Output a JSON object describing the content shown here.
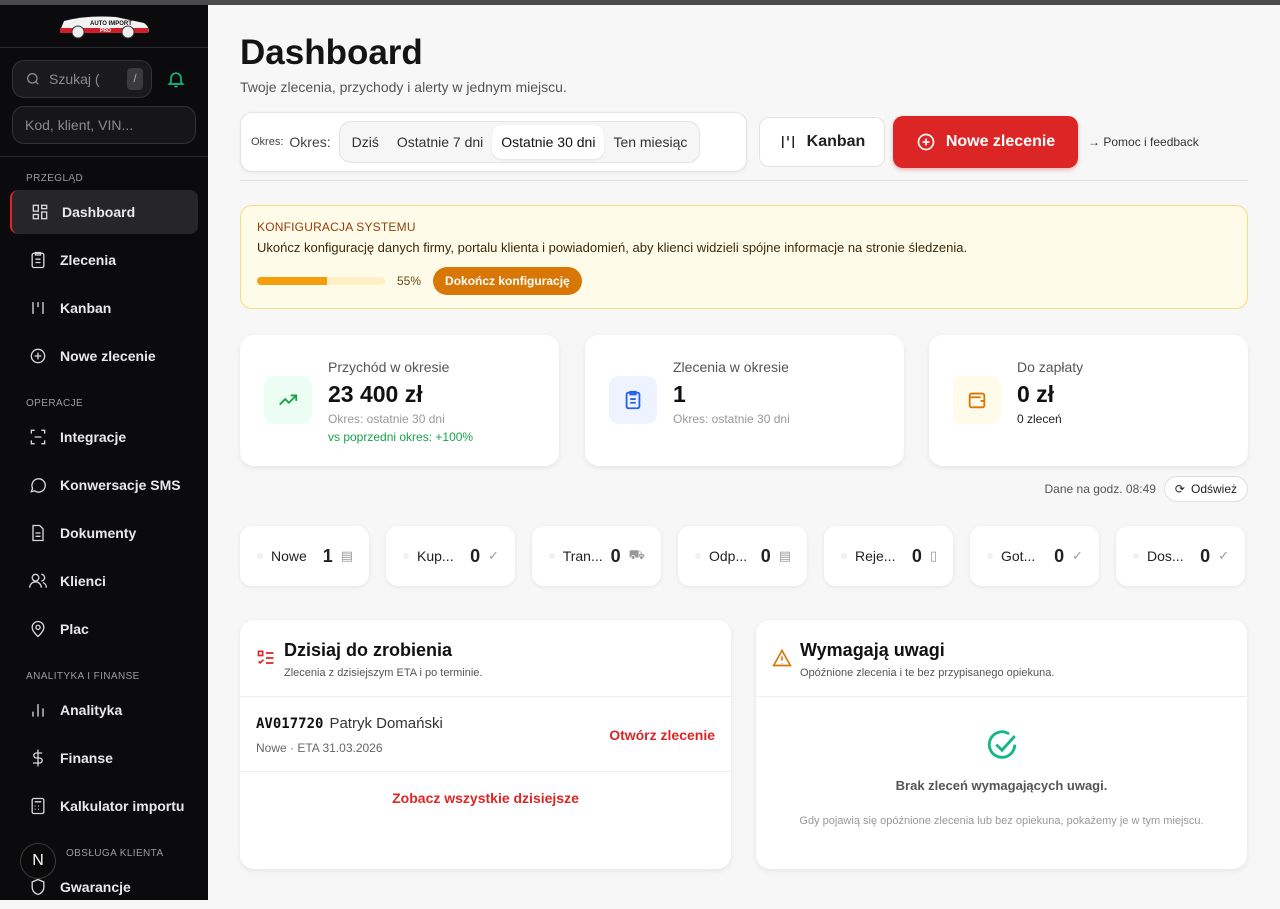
{
  "brand": {
    "logo_text": "AUTO IMPORT PRO"
  },
  "sidebar": {
    "search_placeholder": "Szukaj (",
    "search_shortcut": "/",
    "quick_placeholder": "Kod, klient, VIN...",
    "sections": [
      {
        "label": "PRZEGLĄD",
        "items": [
          {
            "label": "Dashboard",
            "icon": "grid-icon",
            "active": true
          },
          {
            "label": "Zlecenia",
            "icon": "clipboard-icon"
          },
          {
            "label": "Kanban",
            "icon": "kanban-icon"
          },
          {
            "label": "Nowe zlecenie",
            "icon": "plus-circle-icon"
          }
        ]
      },
      {
        "label": "OPERACJE",
        "items": [
          {
            "label": "Integracje",
            "icon": "scan-icon"
          },
          {
            "label": "Konwersacje SMS",
            "icon": "chat-icon"
          },
          {
            "label": "Dokumenty",
            "icon": "document-icon"
          },
          {
            "label": "Klienci",
            "icon": "users-icon"
          },
          {
            "label": "Plac",
            "icon": "map-pin-icon"
          }
        ]
      },
      {
        "label": "ANALITYKA I FINANSE",
        "items": [
          {
            "label": "Analityka",
            "icon": "bar-chart-icon"
          },
          {
            "label": "Finanse",
            "icon": "dollar-icon"
          },
          {
            "label": "Kalkulator importu",
            "icon": "calculator-icon"
          }
        ]
      },
      {
        "label": "OBSŁUGA KLIENTA",
        "items": [
          {
            "label": "Gwarancje",
            "icon": "shield-icon"
          }
        ]
      }
    ],
    "bubble": "N"
  },
  "header": {
    "title": "Dashboard",
    "subtitle": "Twoje zlecenia, przychody i alerty w jednym miejscu."
  },
  "period": {
    "label_small": "Okres:",
    "label": "Okres:",
    "options": [
      "Dziś",
      "Ostatnie 7 dni",
      "Ostatnie 30 dni",
      "Ten miesiąc"
    ],
    "selected": "Ostatnie 30 dni"
  },
  "actions": {
    "kanban": "Kanban",
    "new_order": "Nowe zlecenie",
    "help": "Pomoc i feedback"
  },
  "config": {
    "title": "KONFIGURACJA SYSTEMU",
    "desc": "Ukończ konfigurację danych firmy, portalu klienta i powiadomień, aby klienci widzieli spójne informacje na stronie śledzenia.",
    "progress": 55,
    "progress_label": "55%",
    "button": "Dokończ konfigurację"
  },
  "stats": [
    {
      "label": "Przychód w okresie",
      "value": "23 400 zł",
      "sub": "Okres: ostatnie 30 dni",
      "trend": "vs poprzedni okres: +100%",
      "icon": "trending-up-icon",
      "color": "#16a34a"
    },
    {
      "label": "Zlecenia w okresie",
      "value": "1",
      "sub": "Okres: ostatnie 30 dni",
      "icon": "clipboard-icon",
      "color": "#2563eb"
    },
    {
      "label": "Do zapłaty",
      "value": "0 zł",
      "sub": "0 zleceń",
      "icon": "wallet-icon",
      "color": "#d97706"
    }
  ],
  "stamp": {
    "text": "Dane na godz. 08:49",
    "refresh": "Odśwież"
  },
  "statuses": [
    {
      "label": "Nowe",
      "count": "1",
      "icon": "clipboard-icon"
    },
    {
      "label": "Kup...",
      "count": "0",
      "icon": "check-circle-icon"
    },
    {
      "label": "Tran...",
      "count": "0",
      "icon": "truck-icon"
    },
    {
      "label": "Odp...",
      "count": "0",
      "icon": "clipboard-icon"
    },
    {
      "label": "Reje...",
      "count": "0",
      "icon": "file-check-icon"
    },
    {
      "label": "Got...",
      "count": "0",
      "icon": "check-circle-icon"
    },
    {
      "label": "Dos...",
      "count": "0",
      "icon": "check-circle-icon"
    }
  ],
  "today": {
    "title": "Dzisiaj do zrobienia",
    "subtitle": "Zlecenia z dzisiejszym ETA i po terminie.",
    "orders": [
      {
        "code": "AV017720",
        "client": "Patryk Domański",
        "meta": "Nowe · ETA 31.03.2026",
        "action": "Otwórz zlecenie"
      }
    ],
    "see_all": "Zobacz wszystkie dzisiejsze"
  },
  "attention": {
    "title": "Wymagają uwagi",
    "subtitle": "Opóźnione zlecenia i te bez przypisanego opiekuna.",
    "empty_title": "Brak zleceń wymagających uwagi.",
    "empty_desc": "Gdy pojawią się opóźnione zlecenia lub bez opiekuna, pokażemy je w tym miejscu."
  }
}
